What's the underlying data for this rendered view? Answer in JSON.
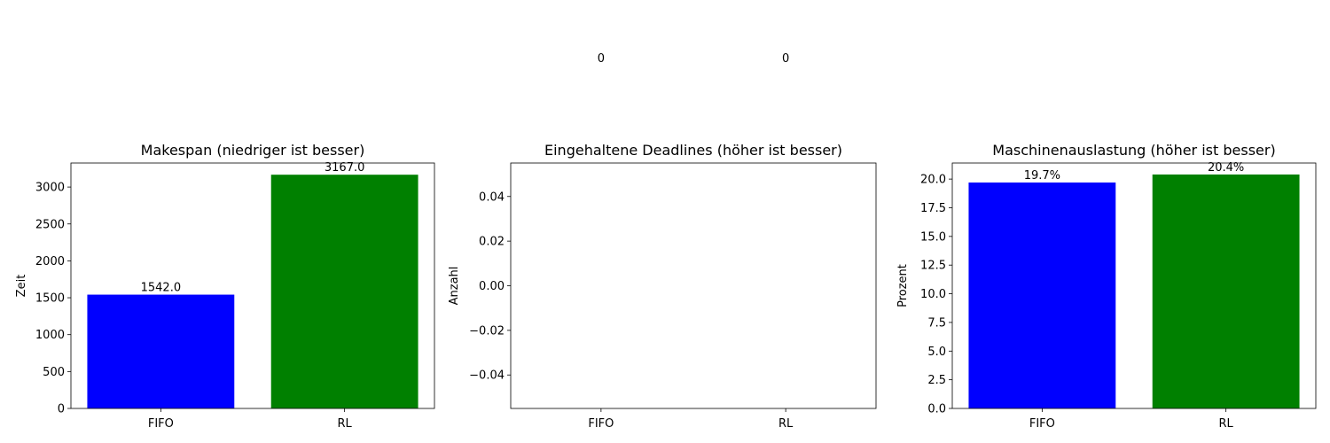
{
  "chart_data": [
    {
      "type": "bar",
      "title": "Makespan (niedriger ist besser)",
      "xlabel": "",
      "ylabel": "Zeit",
      "categories": [
        "FIFO",
        "RL"
      ],
      "values": [
        1542.0,
        3167.0
      ],
      "value_labels": [
        "1542.0",
        "3167.0"
      ],
      "colors": [
        "#0000ff",
        "#008000"
      ],
      "ylim": [
        0,
        3325.35
      ],
      "yticks": [
        0,
        500,
        1000,
        1500,
        2000,
        2500,
        3000
      ],
      "ytick_labels": [
        "0",
        "500",
        "1000",
        "1500",
        "2000",
        "2500",
        "3000"
      ],
      "grid": false
    },
    {
      "type": "bar",
      "title": "Eingehaltene Deadlines (höher ist besser)",
      "xlabel": "",
      "ylabel": "Anzahl",
      "categories": [
        "FIFO",
        "RL"
      ],
      "values": [
        0,
        0
      ],
      "value_labels": [
        "0",
        "0"
      ],
      "colors": [
        "#0000ff",
        "#008000"
      ],
      "ylim": [
        -0.055,
        0.055
      ],
      "yticks": [
        -0.04,
        -0.02,
        0.0,
        0.02,
        0.04
      ],
      "ytick_labels": [
        "−0.04",
        "−0.02",
        "0.00",
        "0.02",
        "0.04"
      ],
      "grid": false
    },
    {
      "type": "bar",
      "title": "Maschinenauslastung (höher ist besser)",
      "xlabel": "",
      "ylabel": "Prozent",
      "categories": [
        "FIFO",
        "RL"
      ],
      "values": [
        19.7,
        20.4
      ],
      "value_labels": [
        "19.7%",
        "20.4%"
      ],
      "colors": [
        "#0000ff",
        "#008000"
      ],
      "ylim": [
        0,
        21.4
      ],
      "yticks": [
        0,
        2.5,
        5,
        7.5,
        10,
        12.5,
        15,
        17.5,
        20
      ],
      "ytick_labels": [
        "0.0",
        "2.5",
        "5.0",
        "7.5",
        "10.0",
        "12.5",
        "15.0",
        "17.5",
        "20.0"
      ],
      "grid": false
    }
  ]
}
